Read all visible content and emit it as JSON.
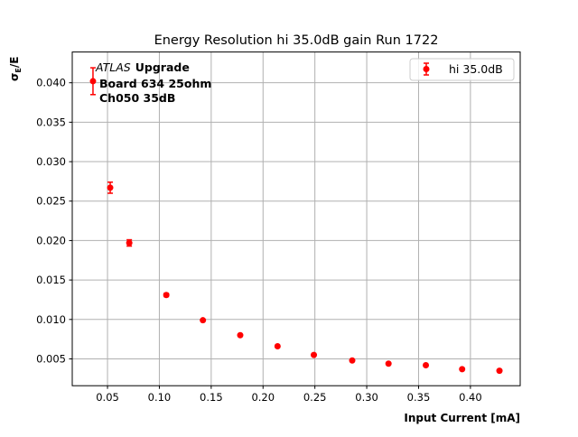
{
  "chart_data": {
    "type": "scatter",
    "title": "Energy Resolution hi 35.0dB gain Run 1722",
    "xlabel": "Input Current [mA]",
    "ylabel_main": "σ",
    "ylabel_sub": "E",
    "ylabel_tail": "/E",
    "xlim": [
      0.016,
      0.448
    ],
    "ylim": [
      0.0016,
      0.0439
    ],
    "grid": true,
    "legend_position": "top-right",
    "xticks": [
      0.05,
      0.1,
      0.15,
      0.2,
      0.25,
      0.3,
      0.35,
      0.4
    ],
    "xtick_labels": [
      "0.05",
      "0.10",
      "0.15",
      "0.20",
      "0.25",
      "0.30",
      "0.35",
      "0.40"
    ],
    "yticks": [
      0.005,
      0.01,
      0.015,
      0.02,
      0.025,
      0.03,
      0.035,
      0.04
    ],
    "ytick_labels": [
      "0.005",
      "0.010",
      "0.015",
      "0.020",
      "0.025",
      "0.030",
      "0.035",
      "0.040"
    ],
    "annotation": {
      "italic": "ATLAS",
      "bold1": "Upgrade",
      "line2": "Board 634 25ohm",
      "line3": "Ch050 35dB"
    },
    "series": [
      {
        "name": "hi 35.0dB",
        "color": "#ff0000",
        "x": [
          0.036,
          0.0526,
          0.071,
          0.1067,
          0.142,
          0.178,
          0.214,
          0.249,
          0.286,
          0.321,
          0.357,
          0.392,
          0.428
        ],
        "y": [
          0.0402,
          0.0267,
          0.0197,
          0.0131,
          0.0099,
          0.008,
          0.0066,
          0.0055,
          0.0048,
          0.0044,
          0.0042,
          0.0037,
          0.0035
        ],
        "yerr": [
          0.0017,
          0.0007,
          0.0004,
          0.0002,
          0.0001,
          0.0001,
          0.0001,
          0.0001,
          0.0001,
          0.0001,
          0.0001,
          0.0001,
          0.0001
        ]
      }
    ]
  }
}
